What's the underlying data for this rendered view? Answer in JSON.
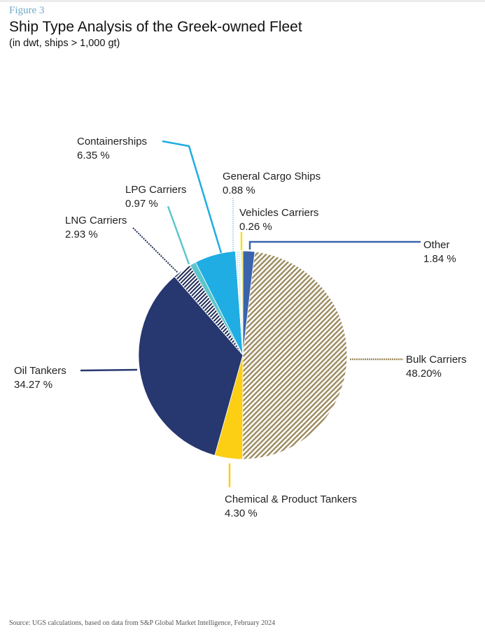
{
  "figure_label": "Figure 3",
  "title": "Ship Type Analysis of the Greek-owned Fleet",
  "subtitle": "(in dwt, ships > 1,000 gt)",
  "source": "Source: UGS calculations, based on data from S&P Global Market Intelligence, February 2024",
  "labels": {
    "containerships": {
      "name": "Containerships",
      "value": "6.35 %"
    },
    "general_cargo": {
      "name": "General Cargo Ships",
      "value": "0.88 %"
    },
    "lpg": {
      "name": "LPG Carriers",
      "value": "0.97 %"
    },
    "vehicles": {
      "name": "Vehicles Carriers",
      "value": "0.26 %"
    },
    "lng": {
      "name": "LNG Carriers",
      "value": "2.93 %"
    },
    "other": {
      "name": "Other",
      "value": "1.84 %"
    },
    "oil": {
      "name": "Oil Tankers",
      "value": "34.27 %"
    },
    "bulk": {
      "name": "Bulk Carriers",
      "value": "48.20%"
    },
    "chemical": {
      "name": "Chemical & Product Tankers",
      "value": "4.30 %"
    }
  },
  "chart_data": {
    "type": "pie",
    "title": "Ship Type Analysis of the Greek-owned Fleet",
    "subtitle": "(in dwt, ships > 1,000 gt)",
    "unit": "% of dwt",
    "start_angle": "12 o'clock, clockwise",
    "categories": [
      "Other",
      "Bulk Carriers",
      "Chemical & Product Tankers",
      "Oil Tankers",
      "LNG Carriers",
      "LPG Carriers",
      "Containerships",
      "General Cargo Ships",
      "Vehicles Carriers"
    ],
    "values": [
      1.84,
      48.2,
      4.3,
      34.27,
      2.93,
      0.97,
      6.35,
      0.88,
      0.26
    ],
    "colors": {
      "Other": "#3a63ad",
      "Bulk Carriers": "#9c8a5e",
      "Chemical & Product Tankers": "#fcce14",
      "Oil Tankers": "#27376f",
      "LNG Carriers": "#1e2a55",
      "LPG Carriers": "#5cc6cb",
      "Containerships": "#1fade3",
      "General Cargo Ships": "#9fd8f2",
      "Vehicles Carriers": "#f3e222"
    },
    "legend": "callout labels",
    "source": "UGS calculations, based on data from S&P Global Market Intelligence, February 2024"
  }
}
